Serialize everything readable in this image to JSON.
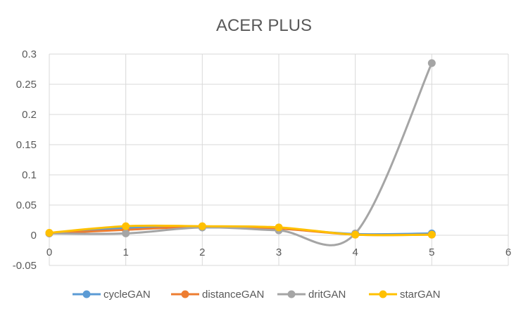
{
  "chart_data": {
    "type": "line",
    "title": "ACER PLUS",
    "xlabel": "",
    "ylabel": "",
    "smooth": true,
    "xlim": [
      0,
      6
    ],
    "ylim": [
      -0.05,
      0.3
    ],
    "x_ticks": [
      0,
      1,
      2,
      3,
      4,
      5,
      6
    ],
    "x_tick_labels": [
      "0",
      "1",
      "2",
      "3",
      "4",
      "5",
      "6"
    ],
    "y_ticks": [
      0.3,
      0.25,
      0.2,
      0.15,
      0.1,
      0.05,
      0,
      -0.05
    ],
    "y_tick_labels": [
      "0.3",
      "0.25",
      "0.2",
      "0.15",
      "0.1",
      "0.05",
      "0",
      "-0.05"
    ],
    "grid": true,
    "legend_position": "bottom",
    "series": [
      {
        "name": "cycleGAN",
        "color": "#5B9BD5",
        "x": [
          0,
          1,
          2,
          3,
          4,
          5
        ],
        "y": [
          0.003,
          0.012,
          0.013,
          0.011,
          0.002,
          0.003
        ]
      },
      {
        "name": "distanceGAN",
        "color": "#ED7D31",
        "x": [
          0,
          1,
          2,
          3,
          4,
          5
        ],
        "y": [
          0.003,
          0.009,
          0.014,
          0.011,
          0.001,
          0.001
        ]
      },
      {
        "name": "dritGAN",
        "color": "#A5A5A5",
        "x": [
          0,
          1,
          2,
          3,
          4,
          5
        ],
        "y": [
          0.003,
          0.003,
          0.013,
          0.008,
          0.003,
          0.285
        ]
      },
      {
        "name": "starGAN",
        "color": "#FFC000",
        "x": [
          0,
          1,
          2,
          3,
          4,
          5
        ],
        "y": [
          0.004,
          0.015,
          0.015,
          0.013,
          0.001,
          0.001
        ]
      }
    ]
  },
  "style": {
    "grid_color": "#D9D9D9",
    "axis_color": "#D9D9D9",
    "text_color": "#595959"
  }
}
